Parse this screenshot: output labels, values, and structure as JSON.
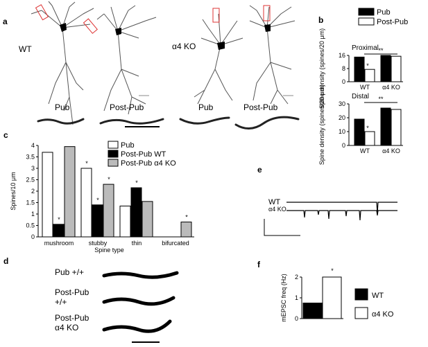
{
  "panel_letters": {
    "a": "a",
    "b": "b",
    "c": "c",
    "d": "d",
    "e": "e",
    "f": "f"
  },
  "panel_a": {
    "wt_label": "WT",
    "ko_label": "α4 KO",
    "wt_pub": "Pub",
    "wt_postpub": "Post-Pub",
    "ko_pub": "Pub",
    "ko_postpub": "Post-Pub"
  },
  "panel_d": {
    "row1": "Pub +/+",
    "row2_line1": "Post-Pub",
    "row2_line2": "+/+",
    "row3_line1": "Post-Pub",
    "row3_line2": "α4 KO"
  },
  "panel_e": {
    "wt_label": "WT",
    "ko_label": "α4 KO"
  },
  "chart_data": [
    {
      "panel": "b-proximal",
      "type": "bar",
      "title": "Proximal",
      "ylabel": "Spine density (spines/20 μm)",
      "ylim": [
        0,
        16
      ],
      "yticks": [
        "0",
        "8",
        "16"
      ],
      "categories": [
        "WT",
        "α4 KO"
      ],
      "legend": [
        "Pub",
        "Post-Pub"
      ],
      "series": [
        {
          "name": "Pub",
          "color": "#000000",
          "values": [
            15,
            16
          ]
        },
        {
          "name": "Post-Pub",
          "color": "#ffffff",
          "values": [
            7.5,
            15.5
          ]
        }
      ],
      "annotations": [
        "*",
        "**"
      ]
    },
    {
      "panel": "b-distal",
      "type": "bar",
      "title": "Distal",
      "ylabel": "Spine density (spines/20 μm)",
      "ylim": [
        0,
        30
      ],
      "yticks": [
        "0",
        "10",
        "20",
        "30"
      ],
      "categories": [
        "WT",
        "α4 KO"
      ],
      "series": [
        {
          "name": "Pub",
          "color": "#000000",
          "values": [
            19,
            27
          ]
        },
        {
          "name": "Post-Pub",
          "color": "#ffffff",
          "values": [
            10,
            26
          ]
        }
      ],
      "annotations": [
        "*",
        "**"
      ]
    },
    {
      "panel": "c",
      "type": "bar",
      "ylabel": "Spines/10 μm",
      "xlabel": "Spine type",
      "ylim": [
        0,
        4
      ],
      "yticks": [
        "0",
        "0.5",
        "1",
        "1.5",
        "2",
        "2.5",
        "3",
        "3.5",
        "4"
      ],
      "categories": [
        "mushroom",
        "stubby",
        "thin",
        "bifurcated"
      ],
      "series": [
        {
          "name": "Pub",
          "color": "#ffffff",
          "values": [
            3.7,
            3.0,
            1.35,
            0
          ]
        },
        {
          "name": "Post-Pub WT",
          "color": "#000000",
          "values": [
            0.55,
            1.4,
            2.15,
            0
          ]
        },
        {
          "name": "Post-Pub α4 KO",
          "color": "#bbbbbb",
          "values": [
            3.95,
            2.3,
            1.55,
            0.65
          ]
        }
      ],
      "annotations": [
        "*",
        "*",
        "*",
        "*",
        "*",
        "*"
      ]
    },
    {
      "panel": "f",
      "type": "bar",
      "ylabel": "mEPSC freq (Hz)",
      "ylim": [
        0,
        2
      ],
      "yticks": [
        "0",
        "1",
        "2"
      ],
      "categories": [
        "WT",
        "α4 KO"
      ],
      "series": [
        {
          "name": "",
          "values": [
            0.75,
            2.0
          ]
        }
      ],
      "legend": [
        "WT",
        "α4 KO"
      ],
      "annotations": [
        "*"
      ]
    }
  ]
}
